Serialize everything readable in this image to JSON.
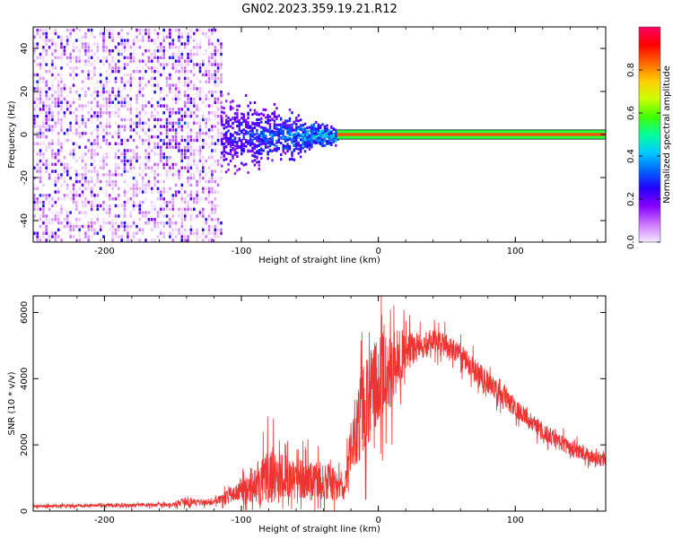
{
  "title": "GN02.2023.359.19.21.R12",
  "chart_data": [
    {
      "type": "heatmap",
      "title": "GN02.2023.359.19.21.R12",
      "xlabel": "Height of straight line (km)",
      "ylabel": "Frequency (Hz)",
      "xlim": [
        -252,
        166
      ],
      "ylim": [
        -50,
        50
      ],
      "xticks": [
        -200,
        -100,
        0,
        100
      ],
      "xtick_labels": [
        "-200",
        "-100",
        "0",
        "100"
      ],
      "yticks": [
        -40,
        -20,
        0,
        20,
        40
      ],
      "ytick_labels": [
        "-40",
        "-20",
        "0",
        "20",
        "40"
      ],
      "colorbar": {
        "label": "Normalized spectral amplitude",
        "range": [
          0,
          1
        ],
        "ticks": [
          0.0,
          0.2,
          0.4,
          0.6,
          0.8
        ],
        "tick_labels": [
          "0.0",
          "0.2",
          "0.4",
          "0.6",
          "0.8"
        ],
        "colors": [
          "#f4e8ff",
          "#cc77ff",
          "#8800ff",
          "#2200ff",
          "#0066ff",
          "#00ccff",
          "#00ff99",
          "#44ff00",
          "#ccff00",
          "#ffcc00",
          "#ff6600",
          "#ff0000",
          "#ff0066"
        ]
      },
      "regions": [
        {
          "x_range": [
            -252,
            -115
          ],
          "freq_halfwidth": 50,
          "amplitude": 0.1,
          "description": "broadband noise"
        },
        {
          "x_range": [
            -115,
            -30
          ],
          "freq_halfwidth": [
            25,
            5
          ],
          "amplitude": [
            0.15,
            0.35
          ]
        },
        {
          "x_range": [
            -30,
            166
          ],
          "freq_center": 0,
          "freq_halfwidth": 2,
          "amplitude": 0.85
        }
      ],
      "grid": false
    },
    {
      "type": "line",
      "xlabel": "Height of straight line (km)",
      "ylabel": "SNR (10 * v/v)",
      "xlim": [
        -252,
        166
      ],
      "ylim": [
        0,
        6500
      ],
      "xticks": [
        -200,
        -100,
        0,
        100
      ],
      "xtick_labels": [
        "-200",
        "-100",
        "0",
        "100"
      ],
      "yticks": [
        0,
        2000,
        4000,
        6000
      ],
      "ytick_labels": [
        "0",
        "2000",
        "4000",
        "6000"
      ],
      "color": "#ee3333",
      "series": [
        {
          "x": [
            -252,
            -200,
            -150,
            -145,
            -120,
            -100,
            -90,
            -80,
            -70,
            -60,
            -50,
            -40,
            -30,
            -25,
            -20,
            -15,
            -10,
            0,
            10,
            20,
            30,
            40,
            50,
            60,
            80,
            100,
            120,
            140,
            166
          ],
          "values": [
            150,
            170,
            190,
            260,
            260,
            650,
            800,
            1100,
            1000,
            1000,
            950,
            900,
            800,
            600,
            2000,
            2700,
            3100,
            3900,
            4400,
            4800,
            5000,
            5100,
            5000,
            4700,
            3900,
            3100,
            2400,
            1900,
            1500
          ],
          "spread": [
            60,
            60,
            70,
            150,
            100,
            400,
            700,
            1200,
            900,
            800,
            800,
            700,
            600,
            400,
            900,
            1600,
            1800,
            1800,
            1500,
            800,
            500,
            500,
            450,
            450,
            400,
            350,
            350,
            300,
            250
          ]
        }
      ],
      "grid": false
    }
  ]
}
